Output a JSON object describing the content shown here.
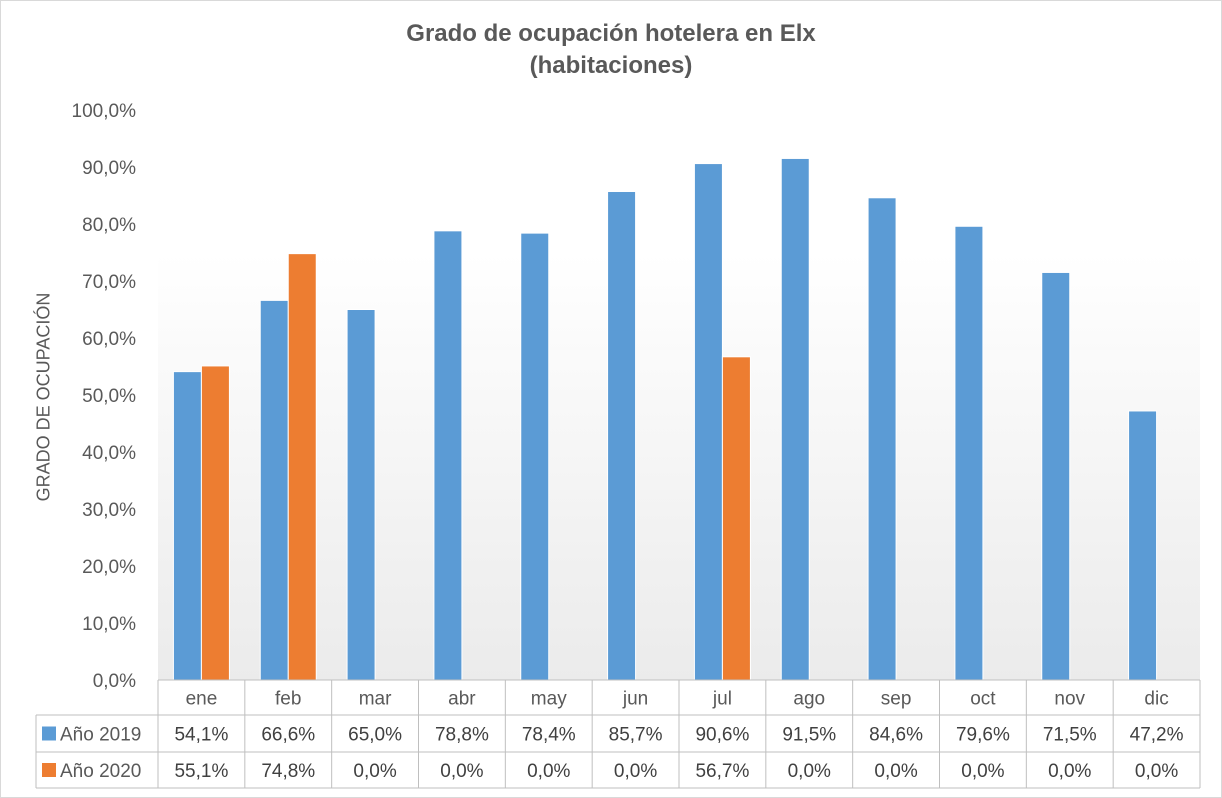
{
  "chart_data": {
    "type": "bar",
    "title": "Grado de ocupación hotelera en Elx",
    "subtitle": "(habitaciones)",
    "ylabel": "GRADO DE OCUPACIÓN",
    "xlabel": "",
    "ylim": [
      0,
      100
    ],
    "y_ticks": [
      "0,0%",
      "10,0%",
      "20,0%",
      "30,0%",
      "40,0%",
      "50,0%",
      "60,0%",
      "70,0%",
      "80,0%",
      "90,0%",
      "100,0%"
    ],
    "categories": [
      "ene",
      "feb",
      "mar",
      "abr",
      "may",
      "jun",
      "jul",
      "ago",
      "sep",
      "oct",
      "nov",
      "dic"
    ],
    "grid": false,
    "legend": "data-table",
    "series": [
      {
        "name": "Año 2019",
        "color": "#5b9bd5",
        "values": [
          54.1,
          66.6,
          65.0,
          78.8,
          78.4,
          85.7,
          90.6,
          91.5,
          84.6,
          79.6,
          71.5,
          47.2
        ],
        "labels": [
          "54,1%",
          "66,6%",
          "65,0%",
          "78,8%",
          "78,4%",
          "85,7%",
          "90,6%",
          "91,5%",
          "84,6%",
          "79,6%",
          "71,5%",
          "47,2%"
        ]
      },
      {
        "name": "Año 2020",
        "color": "#ed7d31",
        "values": [
          55.1,
          74.8,
          0.0,
          0.0,
          0.0,
          0.0,
          56.7,
          0.0,
          0.0,
          0.0,
          0.0,
          0.0
        ],
        "labels": [
          "55,1%",
          "74,8%",
          "0,0%",
          "0,0%",
          "0,0%",
          "0,0%",
          "56,7%",
          "0,0%",
          "0,0%",
          "0,0%",
          "0,0%",
          "0,0%"
        ]
      }
    ]
  }
}
